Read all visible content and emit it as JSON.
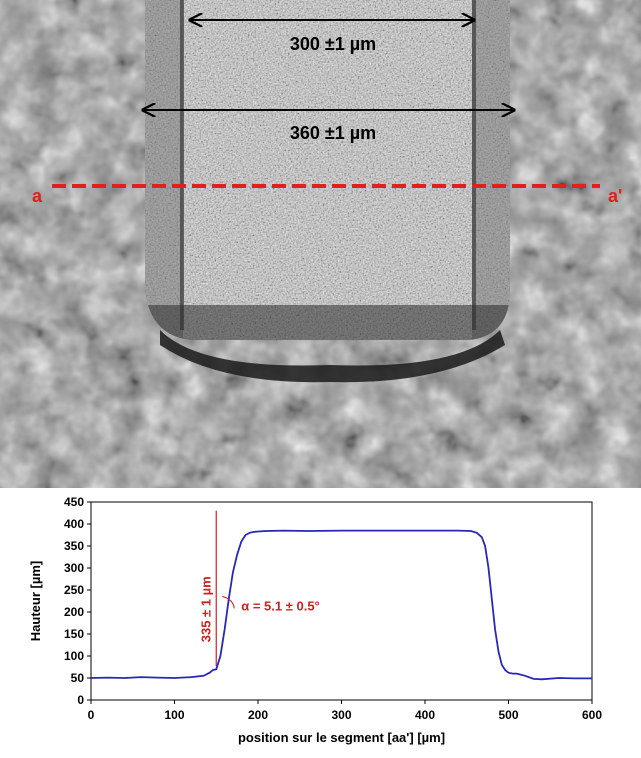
{
  "micrograph": {
    "dimension_top": "300 ±1 µm",
    "dimension_bottom": "360 ±1 µm",
    "segment_start_label": "a",
    "segment_end_label": "a'",
    "colors": {
      "segment": "#e0201b",
      "arrow": "#000000"
    }
  },
  "chart_data": {
    "type": "line",
    "xlabel": "position sur le segment [aa'] [µm]",
    "ylabel": "Hauteur [µm]",
    "xlim": [
      0,
      600
    ],
    "ylim": [
      0,
      450
    ],
    "xticks": [
      0,
      100,
      200,
      300,
      400,
      500,
      600
    ],
    "yticks": [
      0,
      50,
      100,
      150,
      200,
      250,
      300,
      350,
      400,
      450
    ],
    "grid": false,
    "series": [
      {
        "color": "#2727b8",
        "x": [
          0,
          20,
          40,
          60,
          80,
          100,
          120,
          135,
          142,
          146,
          150,
          155,
          160,
          165,
          170,
          175,
          180,
          185,
          190,
          195,
          200,
          210,
          230,
          260,
          300,
          350,
          400,
          440,
          455,
          462,
          468,
          472,
          476,
          480,
          484,
          488,
          492,
          496,
          500,
          505,
          510,
          520,
          530,
          540,
          560,
          580,
          600
        ],
        "y": [
          50,
          51,
          50,
          52,
          51,
          50,
          52,
          55,
          62,
          68,
          70,
          100,
          160,
          230,
          290,
          330,
          360,
          375,
          380,
          382,
          383,
          384,
          385,
          384,
          385,
          385,
          385,
          385,
          384,
          380,
          370,
          350,
          300,
          230,
          160,
          110,
          80,
          68,
          62,
          60,
          60,
          55,
          48,
          47,
          50,
          49,
          49
        ]
      }
    ],
    "annotations": {
      "step_height": "335 ± 1 µm",
      "angle": "α = 5.1 ± 0.5°",
      "annotation_color": "#d02020"
    }
  }
}
